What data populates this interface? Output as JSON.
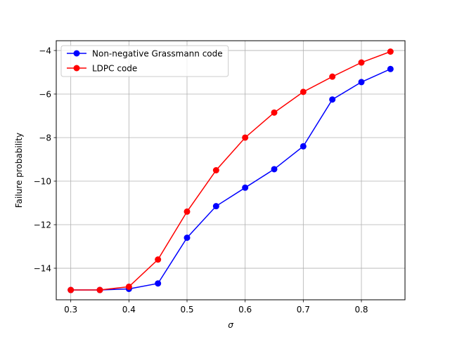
{
  "chart_data": {
    "type": "line",
    "title": "",
    "xlabel": "σ",
    "ylabel": "Failure probability",
    "xlim": [
      0.275,
      0.875
    ],
    "ylim": [
      -15.45,
      -3.55
    ],
    "xticks": [
      0.3,
      0.4,
      0.5,
      0.6,
      0.7,
      0.8
    ],
    "xtick_labels": [
      "0.3",
      "0.4",
      "0.5",
      "0.6",
      "0.7",
      "0.8"
    ],
    "yticks": [
      -14,
      -12,
      -10,
      -8,
      -6,
      -4
    ],
    "ytick_labels": [
      "−14",
      "−12",
      "−10",
      "−8",
      "−6",
      "−4"
    ],
    "grid": true,
    "legend_position": "top-left",
    "x": [
      0.3,
      0.35,
      0.4,
      0.45,
      0.5,
      0.55,
      0.6,
      0.65,
      0.7,
      0.75,
      0.8,
      0.85
    ],
    "series": [
      {
        "name": "Non-negative Grassmann code",
        "color": "#0000ff",
        "values": [
          -15.0,
          -15.0,
          -14.95,
          -14.7,
          -12.6,
          -11.15,
          -10.3,
          -9.45,
          -8.4,
          -6.25,
          -5.45,
          -4.85
        ]
      },
      {
        "name": "LDPC code",
        "color": "#ff0000",
        "values": [
          -15.0,
          -15.0,
          -14.85,
          -13.6,
          -11.4,
          -9.5,
          -8.0,
          -6.85,
          -5.9,
          -5.2,
          -4.55,
          -4.05
        ]
      }
    ]
  }
}
